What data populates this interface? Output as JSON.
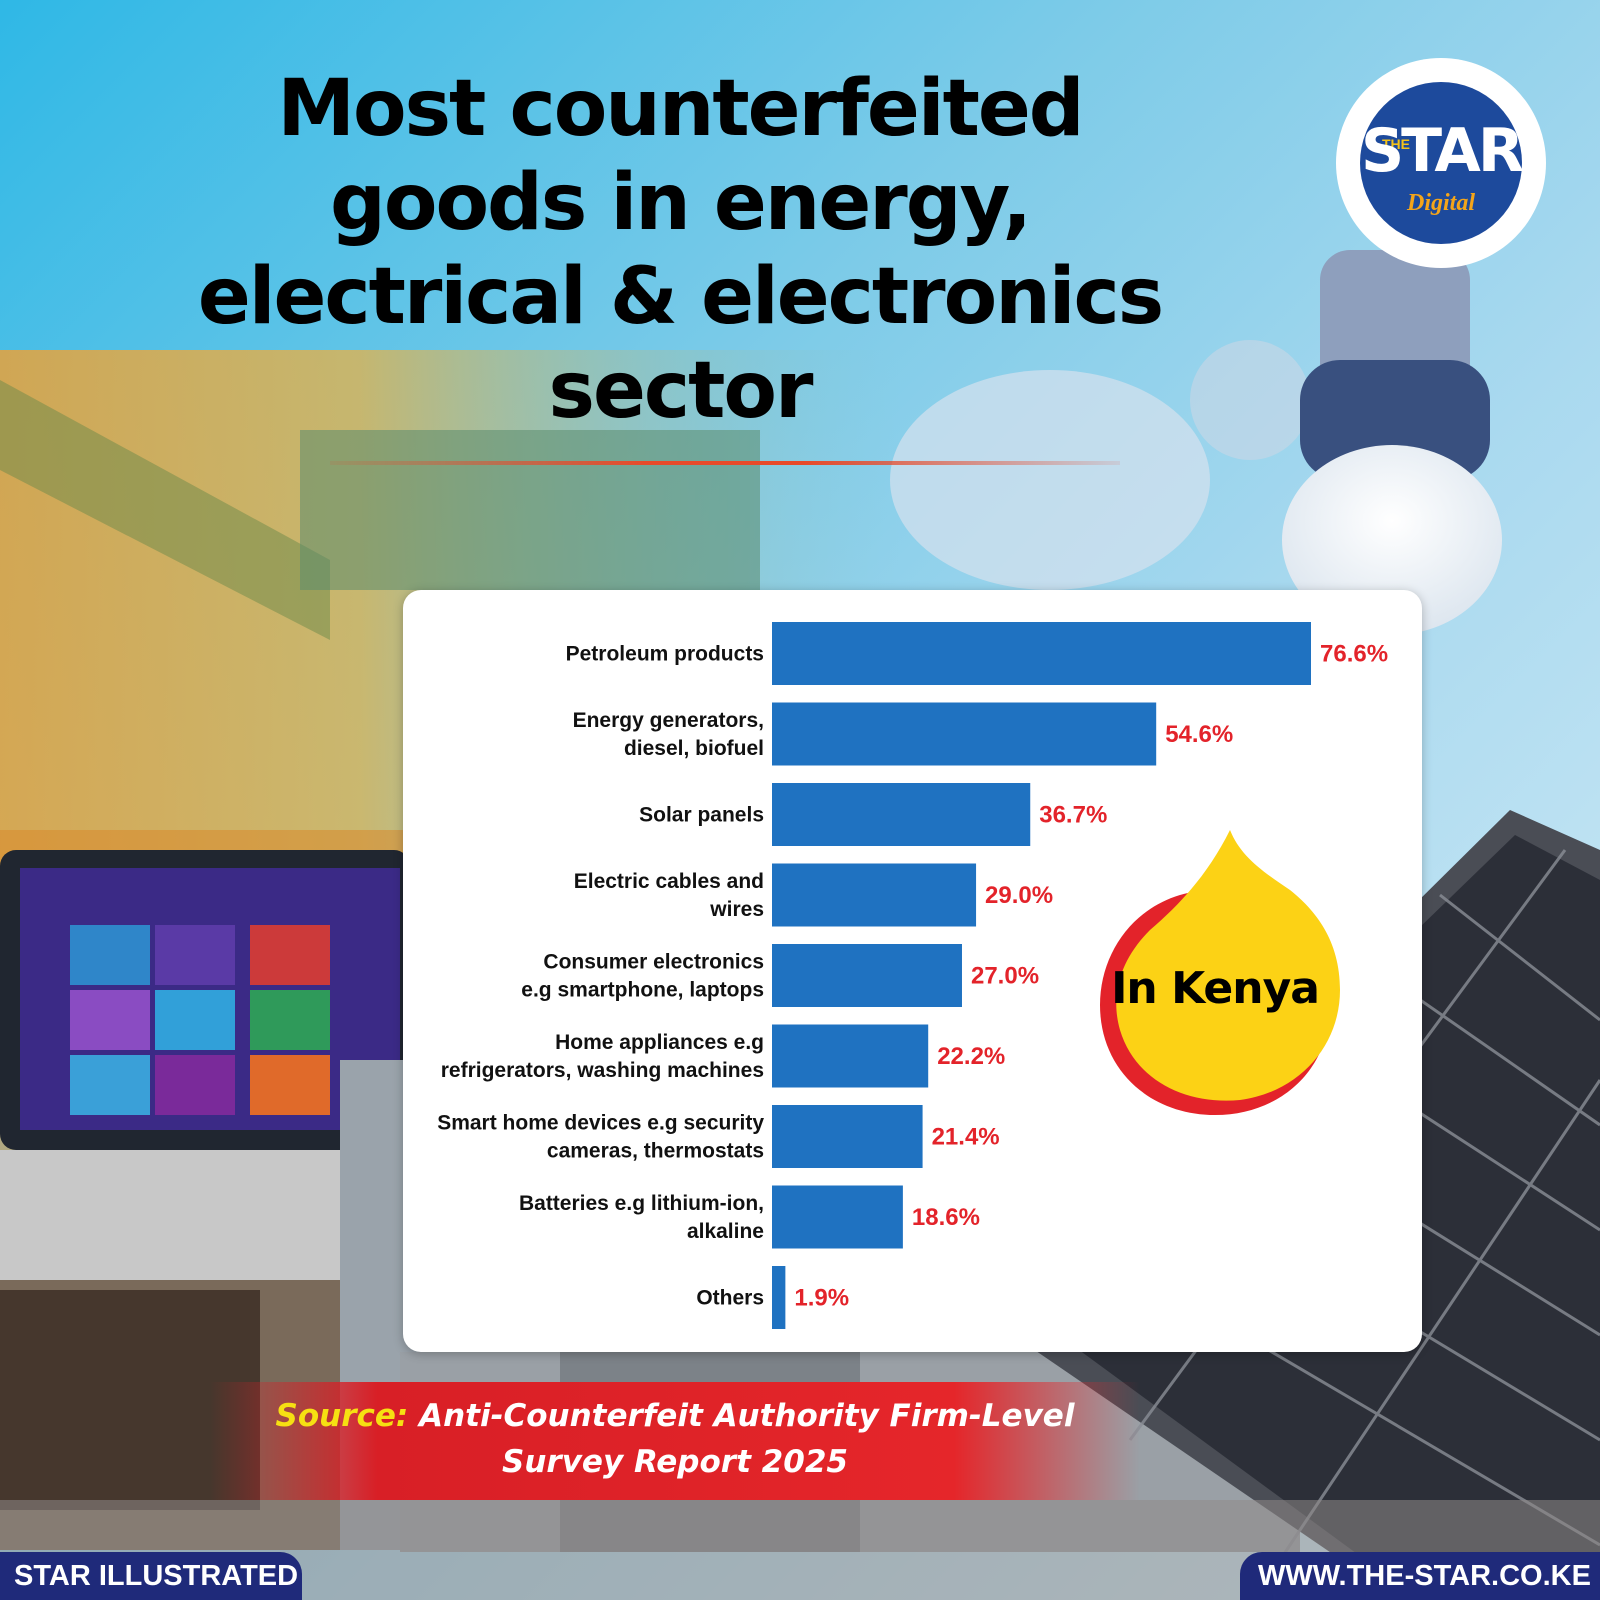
{
  "title": {
    "lines": [
      "Most counterfeited",
      "goods in energy,",
      "electrical & electronics",
      "sector"
    ]
  },
  "logo": {
    "the": "THE",
    "star": "STAR",
    "digital": "Digital"
  },
  "badge": {
    "text": "In Kenya"
  },
  "source": {
    "label": "Source:",
    "text": "Anti-Counterfeit Authority Firm-Level Survey Report 2025"
  },
  "footer": {
    "left": "STAR ILLUSTRATED",
    "right": "WWW.THE-STAR.CO.KE"
  },
  "colors": {
    "bar": "#1f72c1",
    "value_label": "#e3232a",
    "badge_yellow": "#fcd215",
    "badge_red": "#e3232a",
    "footer": "#1f2a7a"
  },
  "chart_data": {
    "type": "bar",
    "orientation": "horizontal",
    "categories": [
      [
        "Petroleum products"
      ],
      [
        "Energy generators,",
        "diesel, biofuel"
      ],
      [
        "Solar panels"
      ],
      [
        "Electric cables and",
        "wires"
      ],
      [
        "Consumer electronics",
        "e.g smartphone, laptops"
      ],
      [
        "Home appliances e.g",
        "refrigerators, washing machines"
      ],
      [
        "Smart home devices e.g security",
        "cameras, thermostats"
      ],
      [
        "Batteries e.g lithium-ion,",
        "alkaline"
      ],
      [
        "Others"
      ]
    ],
    "values": [
      76.6,
      54.6,
      36.7,
      29.0,
      27.0,
      22.2,
      21.4,
      18.6,
      1.9
    ],
    "value_labels": [
      "76.6%",
      "54.6%",
      "36.7%",
      "29.0%",
      "27.0%",
      "22.2%",
      "21.4%",
      "18.6%",
      "1.9%"
    ],
    "unit": "%",
    "xlim": [
      0,
      76.6
    ],
    "grid": false,
    "legend": "none"
  }
}
